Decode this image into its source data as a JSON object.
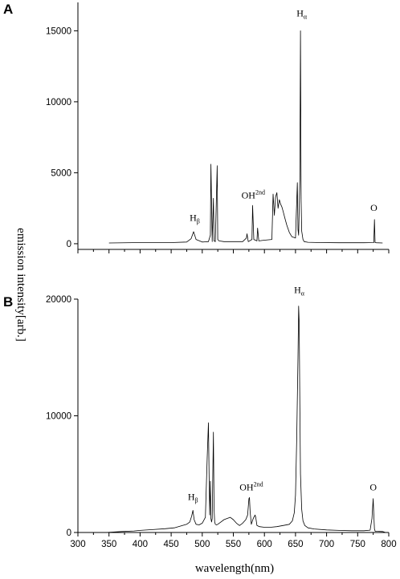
{
  "figure": {
    "xlabel": "wavelength(nm)",
    "ylabel": "emission intensity[arb.]"
  },
  "chart_data": [
    {
      "type": "line",
      "panel": "A",
      "xlabel": "",
      "ylabel": "emission intensity[arb.]",
      "xlim": [
        300,
        800
      ],
      "ylim": [
        -400,
        17000
      ],
      "yticks": [
        0,
        5000,
        10000,
        15000
      ],
      "ytick_labels": [
        "0",
        "5000",
        "10000",
        "15000"
      ],
      "grid": false,
      "series": [
        {
          "x": [
            350,
            400,
            450,
            475,
            482,
            486,
            490,
            500,
            510,
            513,
            514,
            516,
            518,
            519,
            521,
            524,
            525,
            527,
            535,
            550,
            565,
            571,
            572,
            574,
            580,
            581,
            583,
            588,
            589,
            591,
            600,
            612,
            614,
            616,
            618,
            620,
            622,
            624,
            626,
            628,
            630,
            633,
            636,
            640,
            644,
            650,
            653,
            654,
            655,
            657,
            658,
            659,
            660,
            662,
            664,
            670,
            690,
            720,
            760,
            776,
            777,
            778,
            780,
            790
          ],
          "y": [
            50,
            80,
            80,
            120,
            350,
            850,
            300,
            120,
            150,
            600,
            5600,
            150,
            3200,
            200,
            150,
            5500,
            300,
            200,
            150,
            150,
            150,
            400,
            700,
            150,
            300,
            2700,
            300,
            200,
            1100,
            200,
            250,
            300,
            3500,
            2000,
            3300,
            3600,
            2500,
            3100,
            2800,
            2600,
            2300,
            1800,
            1300,
            800,
            500,
            400,
            4300,
            1000,
            600,
            4500,
            15000,
            3000,
            900,
            300,
            150,
            100,
            80,
            70,
            70,
            80,
            1700,
            80,
            70,
            50
          ]
        }
      ],
      "annotations": [
        {
          "label": "H",
          "sub": "β",
          "x": 488,
          "y": 1600
        },
        {
          "label": "OH",
          "sup": "2nd",
          "x": 582,
          "y": 3200
        },
        {
          "label": "H",
          "sub": "α",
          "x": 660,
          "y": 16000
        },
        {
          "label": "O",
          "x": 776,
          "y": 2300
        }
      ]
    },
    {
      "type": "line",
      "panel": "B",
      "xlabel": "wavelength(nm)",
      "ylabel": "",
      "xlim": [
        300,
        800
      ],
      "ylim": [
        0,
        20000
      ],
      "xticks": [
        300,
        350,
        400,
        450,
        500,
        550,
        600,
        650,
        700,
        750,
        800
      ],
      "xtick_labels": [
        "300",
        "350",
        "400",
        "450",
        "500",
        "550",
        "600",
        "650",
        "700",
        "750",
        "800"
      ],
      "yticks": [
        0,
        10000,
        20000
      ],
      "ytick_labels": [
        "0",
        "10000",
        "20000"
      ],
      "grid": false,
      "series": [
        {
          "x": [
            345,
            370,
            390,
            400,
            420,
            440,
            455,
            465,
            475,
            480,
            483,
            485,
            487,
            490,
            495,
            500,
            505,
            508,
            510,
            511,
            512,
            513,
            514,
            515,
            516,
            518,
            519,
            520,
            521,
            523,
            525,
            530,
            535,
            540,
            545,
            550,
            555,
            560,
            565,
            570,
            573,
            575,
            576,
            577,
            579,
            582,
            585,
            586,
            588,
            592,
            600,
            610,
            620,
            630,
            640,
            645,
            648,
            650,
            652,
            654,
            655,
            656,
            657,
            658,
            660,
            662,
            665,
            670,
            680,
            700,
            720,
            740,
            760,
            770,
            773,
            775,
            776,
            777,
            778,
            780,
            790,
            795
          ],
          "y": [
            0,
            80,
            130,
            180,
            250,
            320,
            400,
            550,
            700,
            900,
            1400,
            1900,
            1100,
            700,
            650,
            800,
            1300,
            6500,
            9400,
            5000,
            1500,
            4400,
            1200,
            900,
            1200,
            8600,
            2000,
            900,
            700,
            650,
            700,
            900,
            1100,
            1200,
            1300,
            1100,
            800,
            600,
            800,
            1100,
            1500,
            2900,
            3000,
            1800,
            700,
            1200,
            1500,
            1300,
            600,
            500,
            450,
            450,
            500,
            600,
            700,
            1000,
            1700,
            3200,
            8000,
            15000,
            19400,
            18000,
            11000,
            5000,
            2000,
            1000,
            600,
            400,
            300,
            220,
            180,
            150,
            150,
            200,
            1200,
            2900,
            1500,
            300,
            120,
            100,
            80,
            0
          ]
        }
      ],
      "annotations": [
        {
          "label": "H",
          "sub": "β",
          "x": 485,
          "y": 2800
        },
        {
          "label": "OH",
          "sup": "2nd",
          "x": 579,
          "y": 3600
        },
        {
          "label": "H",
          "sub": "α",
          "x": 656,
          "y": 20500
        },
        {
          "label": "O",
          "x": 775,
          "y": 3600
        }
      ]
    }
  ]
}
